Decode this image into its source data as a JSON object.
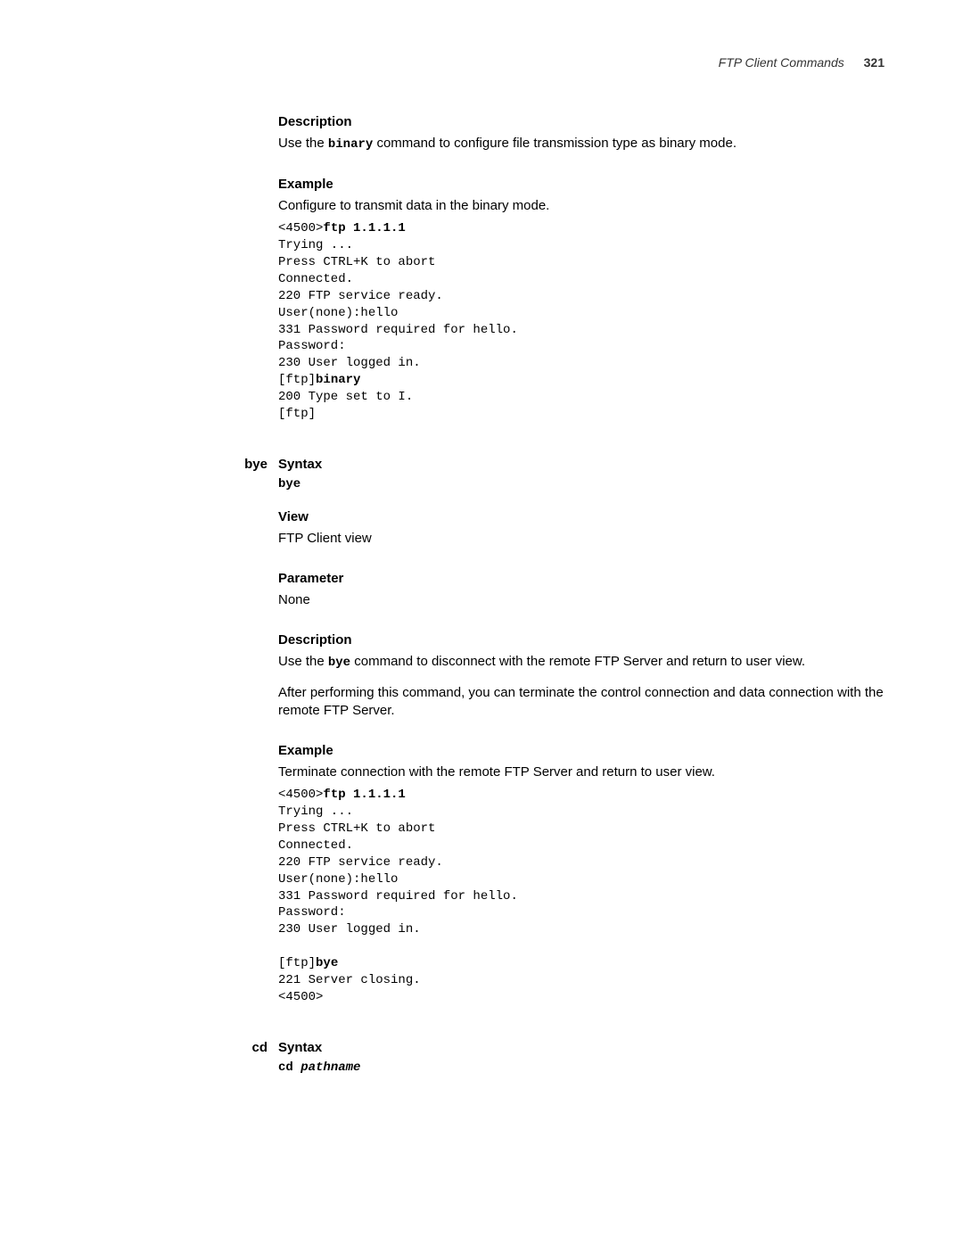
{
  "header": {
    "title": "FTP Client Commands",
    "page_number": "321"
  },
  "sections": [
    {
      "left_label": "",
      "blocks": [
        {
          "heading": "Description",
          "paragraphs": [
            {
              "prefix": "Use the ",
              "code": "binary",
              "suffix": " command to configure file transmission type as binary mode."
            }
          ]
        },
        {
          "heading": "Example",
          "paragraphs": [
            {
              "text": "Configure to transmit data in the binary mode."
            }
          ],
          "code": [
            {
              "t": "<4500>"
            },
            {
              "t": "ftp 1.1.1.1",
              "b": true
            },
            {
              "nl": true
            },
            {
              "t": "Trying ..."
            },
            {
              "nl": true
            },
            {
              "t": "Press CTRL+K to abort"
            },
            {
              "nl": true
            },
            {
              "t": "Connected."
            },
            {
              "nl": true
            },
            {
              "t": "220 FTP service ready."
            },
            {
              "nl": true
            },
            {
              "t": "User(none):hello"
            },
            {
              "nl": true
            },
            {
              "t": "331 Password required for hello."
            },
            {
              "nl": true
            },
            {
              "t": "Password:"
            },
            {
              "nl": true
            },
            {
              "t": "230 User logged in."
            },
            {
              "nl": true
            },
            {
              "t": "[ftp]"
            },
            {
              "t": "binary",
              "b": true
            },
            {
              "nl": true
            },
            {
              "t": "200 Type set to I."
            },
            {
              "nl": true
            },
            {
              "t": "[ftp]"
            }
          ]
        }
      ]
    },
    {
      "left_label": "bye",
      "blocks": [
        {
          "heading": "Syntax",
          "syntax": "bye"
        },
        {
          "heading": "View",
          "paragraphs": [
            {
              "text": "FTP Client view"
            }
          ]
        },
        {
          "heading": "Parameter",
          "paragraphs": [
            {
              "text": "None"
            }
          ]
        },
        {
          "heading": "Description",
          "paragraphs": [
            {
              "prefix": "Use the ",
              "code": "bye",
              "suffix": " command to disconnect with the remote FTP Server and return to user view."
            },
            {
              "text": "After performing this command, you can terminate the control connection and data connection with the remote FTP Server.",
              "gap": true
            }
          ]
        },
        {
          "heading": "Example",
          "paragraphs": [
            {
              "text": "Terminate connection with the remote FTP Server and return to user view."
            }
          ],
          "code": [
            {
              "t": "<4500>"
            },
            {
              "t": "ftp 1.1.1.1",
              "b": true
            },
            {
              "nl": true
            },
            {
              "t": "Trying ..."
            },
            {
              "nl": true
            },
            {
              "t": "Press CTRL+K to abort"
            },
            {
              "nl": true
            },
            {
              "t": "Connected."
            },
            {
              "nl": true
            },
            {
              "t": "220 FTP service ready."
            },
            {
              "nl": true
            },
            {
              "t": "User(none):hello"
            },
            {
              "nl": true
            },
            {
              "t": "331 Password required for hello."
            },
            {
              "nl": true
            },
            {
              "t": "Password:"
            },
            {
              "nl": true
            },
            {
              "t": "230 User logged in."
            },
            {
              "nl": true
            },
            {
              "blank": true
            },
            {
              "t": "[ftp]"
            },
            {
              "t": "bye",
              "b": true
            },
            {
              "nl": true
            },
            {
              "t": "221 Server closing."
            },
            {
              "nl": true
            },
            {
              "t": "<4500>"
            }
          ]
        }
      ]
    },
    {
      "left_label": "cd",
      "blocks": [
        {
          "heading": "Syntax",
          "syntax_mixed": {
            "cmd": "cd ",
            "arg": "pathname"
          }
        }
      ]
    }
  ]
}
